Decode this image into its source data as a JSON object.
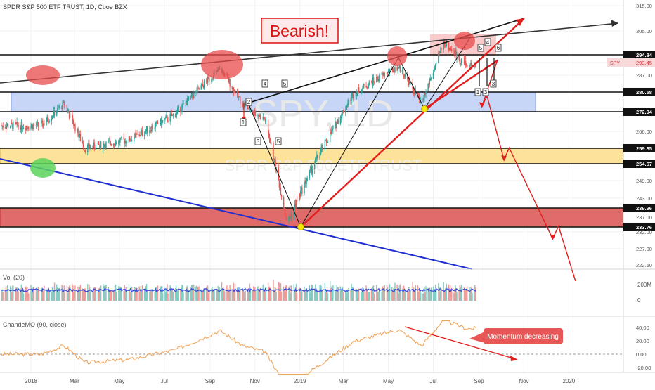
{
  "header": {
    "symbol_title": "SPDR S&P 500 ETF TRUST, 1D, Cboe BZX"
  },
  "annotations": {
    "bearish_label": "Bearish!",
    "momentum_callout": "Momentum decreasing",
    "watermark_symbol": "SPY, 1D",
    "watermark_name": "SPDR S&P 500 ETF TRUST",
    "wave_labels": [
      "1",
      "2",
      "3",
      "4",
      "5",
      "5",
      "1",
      "3",
      "3",
      "4",
      "5",
      "6"
    ]
  },
  "price_scale": {
    "ticks": [
      "315.00",
      "305.00",
      "294.84",
      "293.45",
      "287.00",
      "280.58",
      "272.94",
      "266.00",
      "259.85",
      "254.67",
      "249.00",
      "243.00",
      "239.96",
      "237.00",
      "233.76",
      "232.00",
      "227.00",
      "222.50"
    ],
    "highlight_levels": [
      "294.84",
      "280.58",
      "272.94",
      "259.85",
      "254.67",
      "239.96",
      "233.76"
    ],
    "symbol_tag": "SPY",
    "last_price": "293.45"
  },
  "volume_pane": {
    "label": "Vol (20)",
    "ticks": [
      "200M",
      "0"
    ]
  },
  "cmo_pane": {
    "label": "ChandeMO (90, close)",
    "ticks": [
      "40.00",
      "20.00",
      "0.00",
      "-20.00"
    ]
  },
  "time_axis": {
    "ticks": [
      "2018",
      "Mar",
      "May",
      "Jul",
      "Sep",
      "Nov",
      "2019",
      "Mar",
      "May",
      "Jul",
      "Sep",
      "Nov",
      "2020"
    ]
  },
  "colors": {
    "up": "#26a69a",
    "down": "#ef5350",
    "support_zone_blue": "#c7d6f7",
    "support_zone_yellow": "#fde39a",
    "danger_zone_red": "#e06b6b",
    "projection": "#e11d1d",
    "trend_black": "#222222",
    "trend_blue": "#1f2fd1",
    "cmo_line": "#f0a45a"
  },
  "chart_data": {
    "type": "candlestick",
    "title": "SPDR S&P 500 ETF TRUST, 1D, Cboe BZX",
    "x": [
      "2018-01",
      "2018-02",
      "2018-03",
      "2018-05",
      "2018-07",
      "2018-09",
      "2018-10",
      "2018-11",
      "2018-12",
      "2019-01",
      "2019-03",
      "2019-05",
      "2019-06",
      "2019-07",
      "2019-08"
    ],
    "close": [
      268,
      276,
      260,
      263,
      272,
      290,
      276,
      270,
      235,
      252,
      280,
      291,
      276,
      300,
      292
    ],
    "ylim": [
      218,
      318
    ],
    "horizontal_levels": [
      294.84,
      280.58,
      272.94,
      259.85,
      254.67,
      239.96,
      233.76
    ],
    "zones": [
      {
        "name": "blue support",
        "from": 272.94,
        "to": 280.58
      },
      {
        "name": "yellow support",
        "from": 254.67,
        "to": 259.85
      },
      {
        "name": "red support",
        "from": 233.76,
        "to": 239.96
      }
    ],
    "projection_path": [
      {
        "date": "2019-08",
        "value": 294
      },
      {
        "date": "2019-09",
        "value": 275
      },
      {
        "date": "2019-09",
        "value": 279
      },
      {
        "date": "2019-10",
        "value": 256
      },
      {
        "date": "2019-10",
        "value": 260
      },
      {
        "date": "2019-12",
        "value": 230
      },
      {
        "date": "2019-12",
        "value": 234
      },
      {
        "date": "2020-01",
        "value": 218
      }
    ],
    "volume_ylim": [
      0,
      250
    ],
    "cmo": {
      "name": "ChandeMO (90, close)",
      "ylim": [
        -30,
        50
      ]
    }
  }
}
